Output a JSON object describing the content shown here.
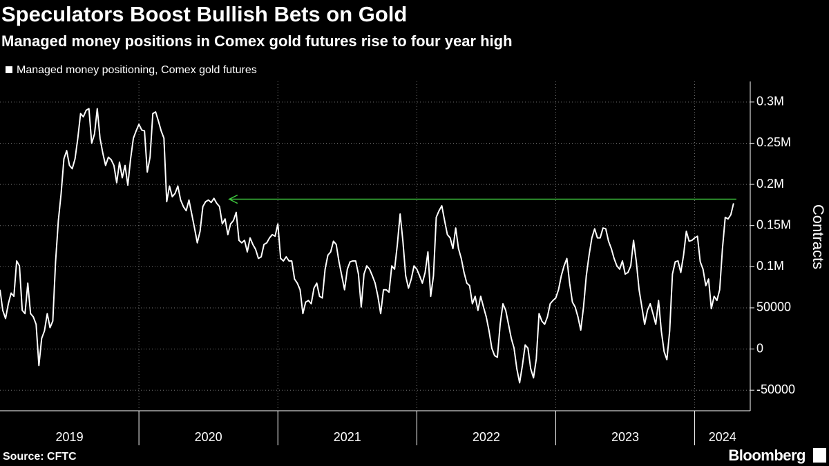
{
  "chart_data": {
    "type": "line",
    "title": "Speculators Boost Bullish Bets on Gold",
    "subtitle": "Managed money positions in Comex gold futures rise to four year high",
    "y_axis_label": "Contracts",
    "source": "Source: CFTC",
    "brand": "Bloomberg",
    "legend": "top-left",
    "grid": true,
    "xlim": [
      2019,
      2024.4
    ],
    "xticks": [
      2019,
      2020,
      2021,
      2022,
      2023,
      2024
    ],
    "ylim": [
      -75000,
      325000
    ],
    "yticks": [
      -50000,
      0,
      50000,
      {
        "value": 100000,
        "label": "0.1M"
      },
      {
        "value": 150000,
        "label": "0.15M"
      },
      {
        "value": 200000,
        "label": "0.2M"
      },
      {
        "value": 250000,
        "label": "0.25M"
      },
      {
        "value": 300000,
        "label": "0.3M"
      }
    ],
    "reference_arrow": {
      "y": 182000,
      "x": [
        2024.3,
        2020.65
      ],
      "color": "#3cc23c"
    },
    "x": [
      2019,
      2019.02,
      2019.04,
      2019.06,
      2019.08,
      2019.1,
      2019.12,
      2019.14,
      2019.16,
      2019.18,
      2019.2,
      2019.22,
      2019.24,
      2019.26,
      2019.28,
      2019.3,
      2019.32,
      2019.34,
      2019.36,
      2019.38,
      2019.4,
      2019.42,
      2019.44,
      2019.46,
      2019.48,
      2019.5,
      2019.52,
      2019.54,
      2019.56,
      2019.58,
      2019.6,
      2019.62,
      2019.64,
      2019.66,
      2019.68,
      2019.7,
      2019.72,
      2019.74,
      2019.76,
      2019.78,
      2019.8,
      2019.82,
      2019.84,
      2019.86,
      2019.88,
      2019.9,
      2019.92,
      2019.94,
      2019.96,
      2019.98,
      2020,
      2020.02,
      2020.04,
      2020.06,
      2020.08,
      2020.1,
      2020.12,
      2020.14,
      2020.16,
      2020.18,
      2020.2,
      2020.22,
      2020.24,
      2020.26,
      2020.28,
      2020.3,
      2020.32,
      2020.34,
      2020.36,
      2020.38,
      2020.4,
      2020.42,
      2020.44,
      2020.46,
      2020.48,
      2020.5,
      2020.52,
      2020.54,
      2020.56,
      2020.58,
      2020.6,
      2020.62,
      2020.64,
      2020.66,
      2020.68,
      2020.7,
      2020.72,
      2020.74,
      2020.76,
      2020.78,
      2020.8,
      2020.82,
      2020.84,
      2020.86,
      2020.88,
      2020.9,
      2020.92,
      2020.94,
      2020.96,
      2020.98,
      2021,
      2021.02,
      2021.04,
      2021.06,
      2021.08,
      2021.1,
      2021.12,
      2021.14,
      2021.16,
      2021.18,
      2021.2,
      2021.22,
      2021.24,
      2021.26,
      2021.28,
      2021.3,
      2021.32,
      2021.34,
      2021.36,
      2021.38,
      2021.4,
      2021.42,
      2021.44,
      2021.46,
      2021.48,
      2021.5,
      2021.52,
      2021.54,
      2021.56,
      2021.58,
      2021.6,
      2021.62,
      2021.64,
      2021.66,
      2021.68,
      2021.7,
      2021.72,
      2021.74,
      2021.76,
      2021.78,
      2021.8,
      2021.82,
      2021.84,
      2021.86,
      2021.88,
      2021.9,
      2021.92,
      2021.94,
      2021.96,
      2021.98,
      2022,
      2022.02,
      2022.04,
      2022.06,
      2022.08,
      2022.1,
      2022.12,
      2022.14,
      2022.16,
      2022.18,
      2022.2,
      2022.22,
      2022.24,
      2022.26,
      2022.28,
      2022.3,
      2022.32,
      2022.34,
      2022.36,
      2022.38,
      2022.4,
      2022.42,
      2022.44,
      2022.46,
      2022.48,
      2022.5,
      2022.52,
      2022.54,
      2022.56,
      2022.58,
      2022.6,
      2022.62,
      2022.64,
      2022.66,
      2022.68,
      2022.7,
      2022.72,
      2022.74,
      2022.76,
      2022.78,
      2022.8,
      2022.82,
      2022.84,
      2022.86,
      2022.88,
      2022.9,
      2022.92,
      2022.94,
      2022.96,
      2022.98,
      2023,
      2023.02,
      2023.04,
      2023.06,
      2023.08,
      2023.1,
      2023.12,
      2023.14,
      2023.16,
      2023.18,
      2023.2,
      2023.22,
      2023.24,
      2023.26,
      2023.28,
      2023.3,
      2023.32,
      2023.34,
      2023.36,
      2023.38,
      2023.4,
      2023.42,
      2023.44,
      2023.46,
      2023.48,
      2023.5,
      2023.52,
      2023.54,
      2023.56,
      2023.58,
      2023.6,
      2023.62,
      2023.64,
      2023.66,
      2023.68,
      2023.7,
      2023.72,
      2023.74,
      2023.76,
      2023.78,
      2023.8,
      2023.82,
      2023.84,
      2023.86,
      2023.88,
      2023.9,
      2023.92,
      2023.94,
      2023.96,
      2023.98,
      2024,
      2024.02,
      2024.04,
      2024.06,
      2024.08,
      2024.1,
      2024.12,
      2024.14,
      2024.16,
      2024.18,
      2024.2,
      2024.22,
      2024.24,
      2024.26,
      2024.28
    ],
    "series": [
      {
        "name": "Managed money positioning, Comex gold futures",
        "color": "#ffffff",
        "values": [
          72000,
          47000,
          37000,
          55000,
          68000,
          64000,
          107000,
          101000,
          47000,
          43000,
          80000,
          43000,
          39000,
          30000,
          -20000,
          13000,
          22000,
          43000,
          26000,
          34000,
          106000,
          156000,
          189000,
          231000,
          241000,
          223000,
          219000,
          231000,
          256000,
          286000,
          282000,
          290000,
          292000,
          250000,
          261000,
          292000,
          256000,
          238000,
          223000,
          233000,
          230000,
          223000,
          202000,
          227000,
          208000,
          223000,
          199000,
          231000,
          256000,
          265000,
          273000,
          266000,
          265000,
          215000,
          233000,
          286000,
          288000,
          277000,
          265000,
          256000,
          179000,
          198000,
          185000,
          189000,
          198000,
          181000,
          173000,
          168000,
          181000,
          164000,
          147000,
          129000,
          143000,
          173000,
          179000,
          181000,
          178000,
          183000,
          177000,
          173000,
          152000,
          158000,
          139000,
          152000,
          156000,
          166000,
          132000,
          129000,
          132000,
          118000,
          135000,
          127000,
          121000,
          110000,
          112000,
          127000,
          129000,
          135000,
          139000,
          137000,
          152000,
          110000,
          107000,
          112000,
          107000,
          107000,
          85000,
          80000,
          72000,
          43000,
          57000,
          59000,
          55000,
          74000,
          80000,
          64000,
          62000,
          97000,
          114000,
          118000,
          131000,
          127000,
          106000,
          89000,
          72000,
          97000,
          106000,
          107000,
          107000,
          91000,
          51000,
          91000,
          101000,
          97000,
          89000,
          80000,
          64000,
          43000,
          72000,
          72000,
          69000,
          101000,
          97000,
          127000,
          164000,
          131000,
          89000,
          74000,
          85000,
          101000,
          97000,
          89000,
          80000,
          93000,
          118000,
          64000,
          89000,
          160000,
          168000,
          174000,
          156000,
          139000,
          135000,
          122000,
          147000,
          122000,
          110000,
          93000,
          80000,
          77000,
          55000,
          64000,
          47000,
          64000,
          51000,
          39000,
          22000,
          1000,
          -8000,
          -10000,
          30000,
          55000,
          47000,
          30000,
          13000,
          1000,
          -24000,
          -41000,
          -20000,
          5000,
          1000,
          -24000,
          -35000,
          -12000,
          43000,
          34000,
          30000,
          39000,
          55000,
          59000,
          62000,
          72000,
          89000,
          101000,
          110000,
          80000,
          57000,
          51000,
          39000,
          23000,
          51000,
          89000,
          114000,
          135000,
          146000,
          135000,
          135000,
          147000,
          146000,
          131000,
          122000,
          110000,
          101000,
          97000,
          107000,
          91000,
          93000,
          101000,
          132000,
          106000,
          72000,
          51000,
          30000,
          47000,
          55000,
          43000,
          30000,
          59000,
          22000,
          -3000,
          -13000,
          22000,
          91000,
          106000,
          107000,
          93000,
          114000,
          143000,
          131000,
          132000,
          135000,
          137000,
          106000,
          97000,
          77000,
          85000,
          49000,
          64000,
          59000,
          72000,
          122000,
          160000,
          158000,
          163000,
          177000
        ]
      }
    ]
  }
}
